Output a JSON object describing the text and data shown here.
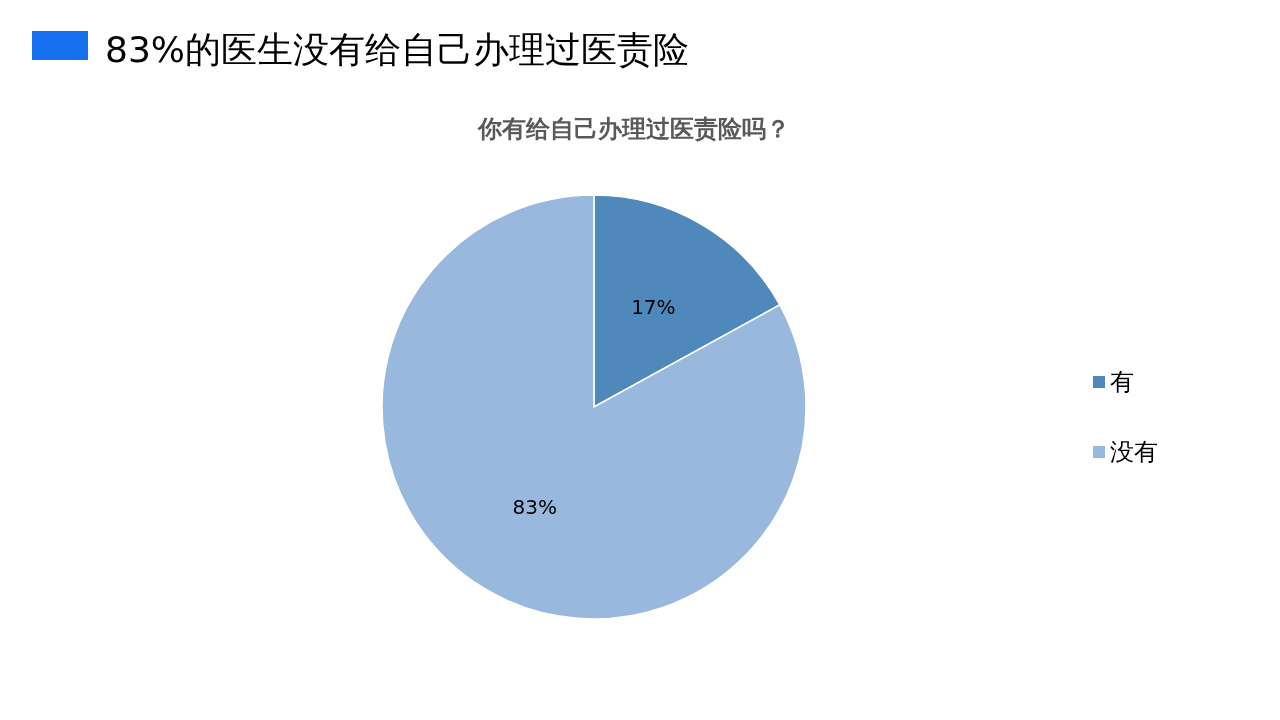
{
  "chart_data": {
    "type": "pie",
    "title": "83%的医生没有给自己办理过医责险",
    "subtitle": "你有给自己办理过医责险吗？",
    "categories": [
      "有",
      "没有"
    ],
    "values": [
      17,
      83
    ],
    "colors": [
      "#4f88bb",
      "#98b8de"
    ],
    "value_labels": [
      "17%",
      "83%"
    ],
    "legend": "right"
  }
}
